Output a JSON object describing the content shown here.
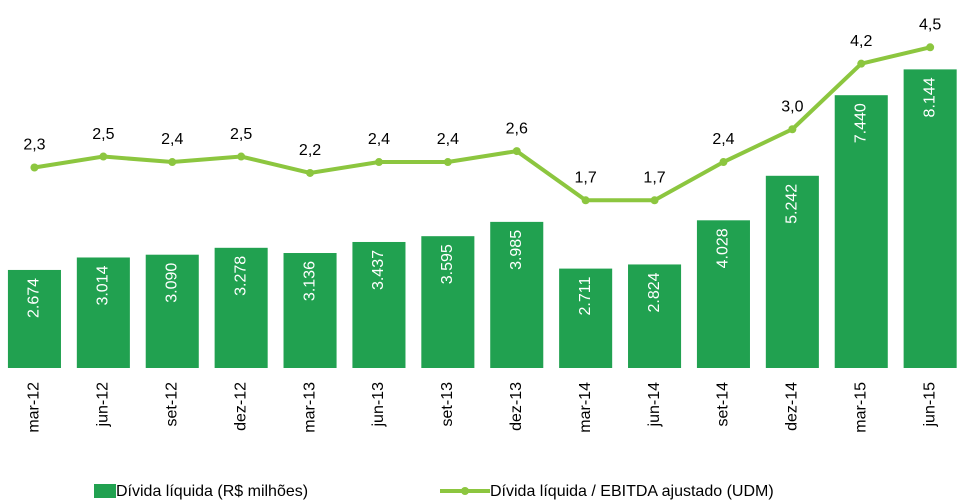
{
  "chart_data": {
    "type": "bar-line",
    "categories": [
      "mar-12",
      "jun-12",
      "set-12",
      "dez-12",
      "mar-13",
      "jun-13",
      "set-13",
      "dez-13",
      "mar-14",
      "jun-14",
      "set-14",
      "dez-14",
      "mar-15",
      "jun-15"
    ],
    "series": [
      {
        "name": "Dívida líquida (R$ milhões)",
        "type": "bar",
        "color": "#21a150",
        "values": [
          2674,
          3014,
          3090,
          3278,
          3136,
          3437,
          3595,
          3985,
          2711,
          2824,
          4028,
          5242,
          7440,
          8144
        ],
        "value_labels": [
          "2.674",
          "3.014",
          "3.090",
          "3.278",
          "3.136",
          "3.437",
          "3.595",
          "3.985",
          "2.711",
          "2.824",
          "4.028",
          "5.242",
          "7.440",
          "8.144"
        ]
      },
      {
        "name": "Dívida líquida / EBITDA ajustado (UDM)",
        "type": "line",
        "axis": "y2",
        "color": "#8cc63f",
        "values": [
          2.3,
          2.5,
          2.4,
          2.5,
          2.2,
          2.4,
          2.4,
          2.6,
          1.7,
          1.7,
          2.4,
          3.0,
          4.2,
          4.5
        ],
        "value_labels": [
          "2,3",
          "2,5",
          "2,4",
          "2,5",
          "2,2",
          "2,4",
          "2,4",
          "2,6",
          "1,7",
          "1,7",
          "2,4",
          "3,0",
          "4,2",
          "4,5"
        ]
      }
    ],
    "ylim": [
      0,
      9000
    ],
    "y2lim": [
      -1.37,
      4.67
    ]
  }
}
